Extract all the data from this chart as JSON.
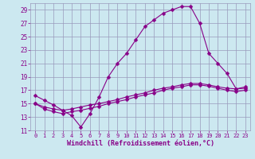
{
  "xlabel": "Windchill (Refroidissement éolien,°C)",
  "bg_color": "#cce8f0",
  "grid_color": "#9999bb",
  "line_color": "#880088",
  "xlim": [
    -0.5,
    23.5
  ],
  "ylim": [
    11,
    30
  ],
  "yticks": [
    11,
    13,
    15,
    17,
    19,
    21,
    23,
    25,
    27,
    29
  ],
  "xticks": [
    0,
    1,
    2,
    3,
    4,
    5,
    6,
    7,
    8,
    9,
    10,
    11,
    12,
    13,
    14,
    15,
    16,
    17,
    18,
    19,
    20,
    21,
    22,
    23
  ],
  "line1_x": [
    0,
    1,
    2,
    3,
    4,
    5,
    6,
    7,
    8,
    9,
    10,
    11,
    12,
    13,
    14,
    15,
    16,
    17,
    18,
    19,
    20,
    21,
    22,
    23
  ],
  "line1_y": [
    16.2,
    15.5,
    14.8,
    14.0,
    13.2,
    11.5,
    13.5,
    16.0,
    19.0,
    21.0,
    22.5,
    24.5,
    26.5,
    27.5,
    28.5,
    29.0,
    29.5,
    29.5,
    27.0,
    22.5,
    21.0,
    19.5,
    17.2,
    17.5
  ],
  "line2_x": [
    0,
    1,
    2,
    3,
    4,
    5,
    6,
    7,
    8,
    9,
    10,
    11,
    12,
    13,
    14,
    15,
    16,
    17,
    18,
    19,
    20,
    21,
    22,
    23
  ],
  "line2_y": [
    15.0,
    14.5,
    14.2,
    14.0,
    14.2,
    14.5,
    14.8,
    15.0,
    15.3,
    15.6,
    16.0,
    16.3,
    16.6,
    17.0,
    17.3,
    17.5,
    17.8,
    18.0,
    18.0,
    17.8,
    17.5,
    17.3,
    17.2,
    17.3
  ],
  "line3_x": [
    0,
    1,
    2,
    3,
    4,
    5,
    6,
    7,
    8,
    9,
    10,
    11,
    12,
    13,
    14,
    15,
    16,
    17,
    18,
    19,
    20,
    21,
    22,
    23
  ],
  "line3_y": [
    15.0,
    14.2,
    13.8,
    13.5,
    13.8,
    14.0,
    14.3,
    14.6,
    15.0,
    15.3,
    15.6,
    16.0,
    16.3,
    16.6,
    17.0,
    17.3,
    17.5,
    17.8,
    17.8,
    17.6,
    17.3,
    17.0,
    16.8,
    17.0
  ],
  "marker": "D",
  "markersize": 2.5,
  "linewidth": 0.8,
  "tick_fontsize": 5.5,
  "xlabel_fontsize": 6.0
}
